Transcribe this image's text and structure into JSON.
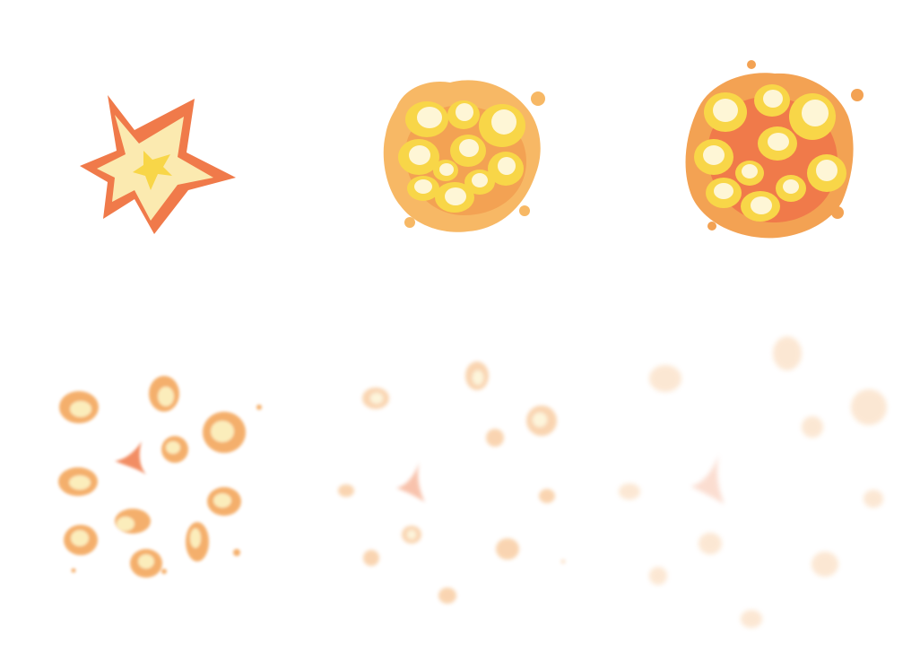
{
  "sprite_sheet": {
    "name": "explosion-animation",
    "background_color": "#ffffff",
    "palette": {
      "dark_orange": "#f07a4a",
      "mid_orange": "#f3a253",
      "light_orange": "#f7b865",
      "yellow": "#f8d648",
      "pale_yellow": "#fbeab0",
      "cream": "#fef6d6"
    },
    "frames": [
      {
        "index": 1,
        "stage": "flash-star",
        "opacity": 1.0
      },
      {
        "index": 2,
        "stage": "fireball",
        "opacity": 1.0
      },
      {
        "index": 3,
        "stage": "fireball-expanding",
        "opacity": 1.0
      },
      {
        "index": 4,
        "stage": "debris-scatter",
        "opacity": 0.85
      },
      {
        "index": 5,
        "stage": "debris-fading",
        "opacity": 0.45
      },
      {
        "index": 6,
        "stage": "debris-dissipating",
        "opacity": 0.25
      }
    ]
  }
}
